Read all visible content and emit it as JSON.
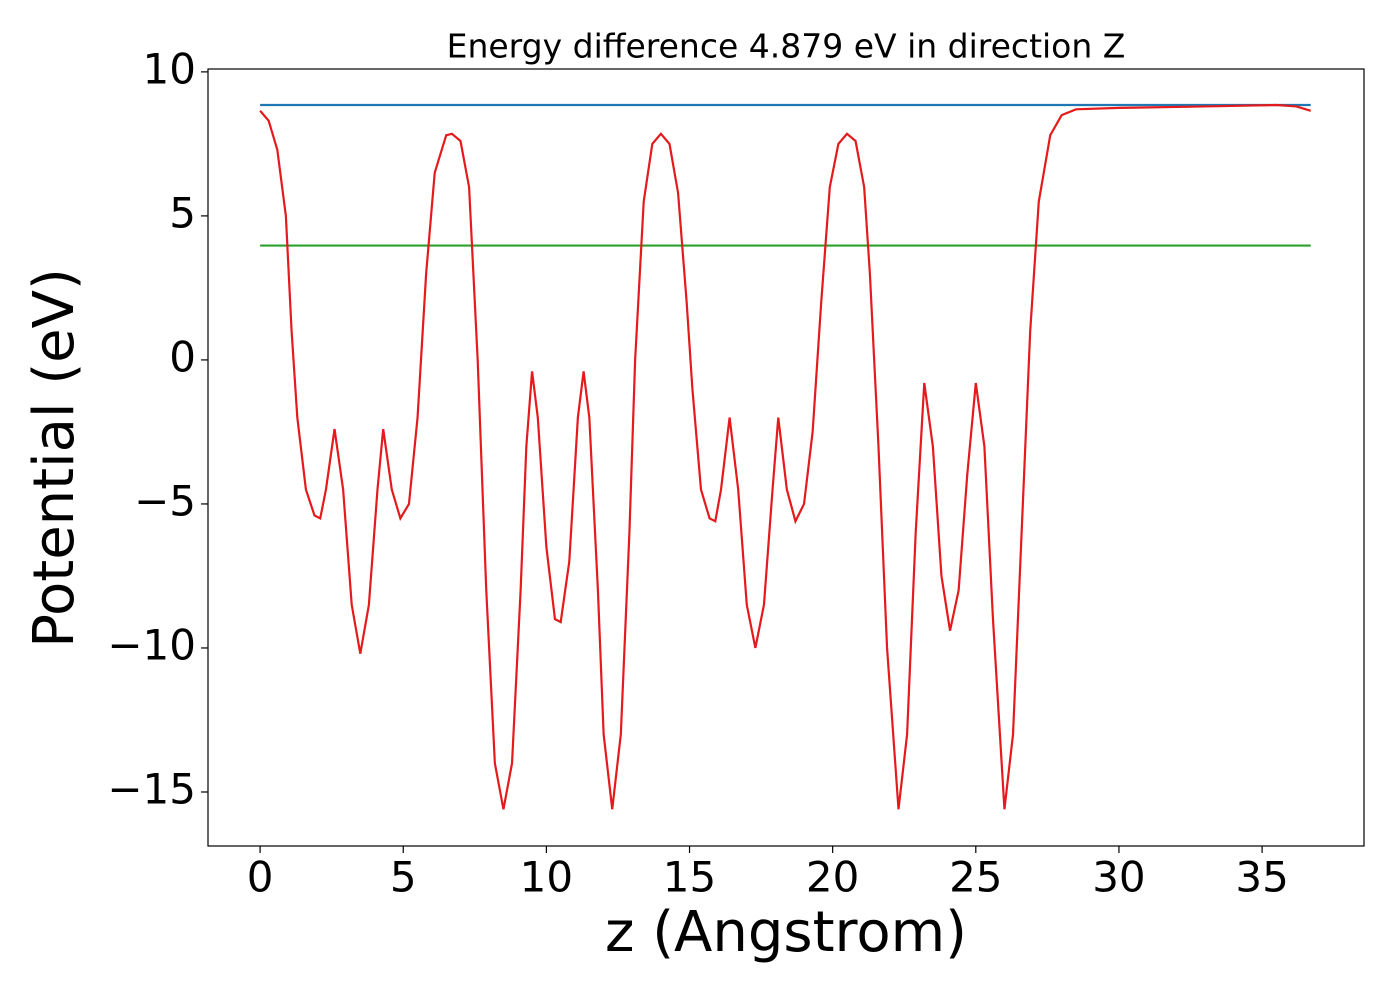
{
  "chart_data": {
    "type": "line",
    "title": "Energy difference 4.879 eV in direction Z",
    "xlabel": "z (Angstrom)",
    "ylabel": "Potential (eV)",
    "xlim": [
      -1.82,
      38.56
    ],
    "ylim": [
      -16.875,
      10.1
    ],
    "xticks": [
      0,
      5,
      10,
      15,
      20,
      25,
      30,
      35
    ],
    "yticks": [
      {
        "value": -15,
        "label": "−15"
      },
      {
        "value": -10,
        "label": "−10"
      },
      {
        "value": -5,
        "label": "−5"
      },
      0,
      5,
      10
    ],
    "series": [
      {
        "color": "#1f77b4",
        "x": [
          0,
          36.7
        ],
        "values": [
          8.85,
          8.85
        ]
      },
      {
        "color": "#2ca02c",
        "x": [
          0,
          36.7
        ],
        "values": [
          3.97,
          3.97
        ]
      },
      {
        "color": "#e41a1c",
        "x": [
          0,
          0.3,
          0.6,
          0.9,
          1.1,
          1.3,
          1.6,
          1.9,
          2.1,
          2.3,
          2.6,
          2.9,
          3.2,
          3.5,
          3.8,
          4.1,
          4.3,
          4.6,
          4.9,
          5.2,
          5.5,
          5.8,
          6.1,
          6.5,
          6.7,
          7.0,
          7.3,
          7.6,
          7.9,
          8.2,
          8.5,
          8.8,
          9.1,
          9.3,
          9.5,
          9.7,
          10.0,
          10.3,
          10.5,
          10.8,
          11.1,
          11.3,
          11.5,
          11.8,
          12.0,
          12.3,
          12.6,
          12.9,
          13.1,
          13.4,
          13.7,
          14.0,
          14.3,
          14.6,
          14.9,
          15.1,
          15.4,
          15.7,
          15.9,
          16.1,
          16.4,
          16.7,
          17.0,
          17.3,
          17.6,
          17.9,
          18.1,
          18.4,
          18.7,
          19.0,
          19.3,
          19.6,
          19.9,
          20.2,
          20.5,
          20.8,
          21.1,
          21.3,
          21.6,
          21.9,
          22.3,
          22.6,
          22.9,
          23.2,
          23.5,
          23.8,
          24.1,
          24.4,
          24.7,
          25.0,
          25.3,
          25.6,
          26.0,
          26.3,
          26.6,
          26.9,
          27.2,
          27.6,
          28.0,
          28.5,
          30,
          33,
          35.5,
          36.2,
          36.7
        ],
        "values": [
          8.65,
          8.3,
          7.3,
          5,
          1,
          -2,
          -4.5,
          -5.4,
          -5.5,
          -4.5,
          -2.4,
          -4.5,
          -8.5,
          -10.2,
          -8.5,
          -4.5,
          -2.4,
          -4.5,
          -5.5,
          -5,
          -2,
          3,
          6.5,
          7.8,
          7.85,
          7.6,
          6,
          0,
          -8,
          -14,
          -15.6,
          -14,
          -8,
          -3,
          -0.4,
          -2,
          -6.5,
          -9,
          -9.1,
          -7,
          -2,
          -0.4,
          -2,
          -8,
          -13,
          -15.6,
          -13,
          -6,
          0,
          5.5,
          7.5,
          7.85,
          7.5,
          5.8,
          2,
          -1,
          -4.5,
          -5.5,
          -5.6,
          -4.5,
          -2,
          -4.5,
          -8.5,
          -10,
          -8.5,
          -4.5,
          -2,
          -4.5,
          -5.6,
          -5,
          -2.5,
          2,
          6,
          7.5,
          7.85,
          7.6,
          6,
          3,
          -3,
          -10,
          -15.6,
          -13,
          -6,
          -0.8,
          -3,
          -7.5,
          -9.4,
          -8,
          -4,
          -0.8,
          -3,
          -9,
          -15.6,
          -13,
          -6,
          1,
          5.5,
          7.8,
          8.5,
          8.7,
          8.75,
          8.8,
          8.85,
          8.8,
          8.65
        ]
      }
    ]
  }
}
